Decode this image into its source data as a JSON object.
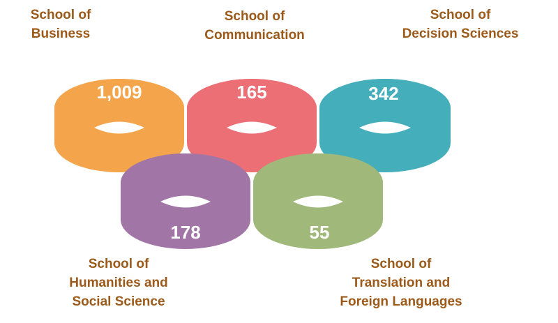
{
  "schools": [
    {
      "id": "business",
      "name_lines": [
        "School of",
        "Business"
      ],
      "value": "1,009",
      "color": "#f4a54c"
    },
    {
      "id": "communication",
      "name_lines": [
        "School of",
        "Communication"
      ],
      "value": "165",
      "color": "#ec6f76"
    },
    {
      "id": "decision-sciences",
      "name_lines": [
        "School of",
        "Decision Sciences"
      ],
      "value": "342",
      "color": "#44aebb"
    },
    {
      "id": "humanities",
      "name_lines": [
        "School of",
        "Humanities and",
        "Social Science"
      ],
      "value": "178",
      "color": "#a175a6"
    },
    {
      "id": "translation",
      "name_lines": [
        "School of",
        "Translation and",
        "Foreign Languages"
      ],
      "value": "55",
      "color": "#a0b87a"
    }
  ]
}
